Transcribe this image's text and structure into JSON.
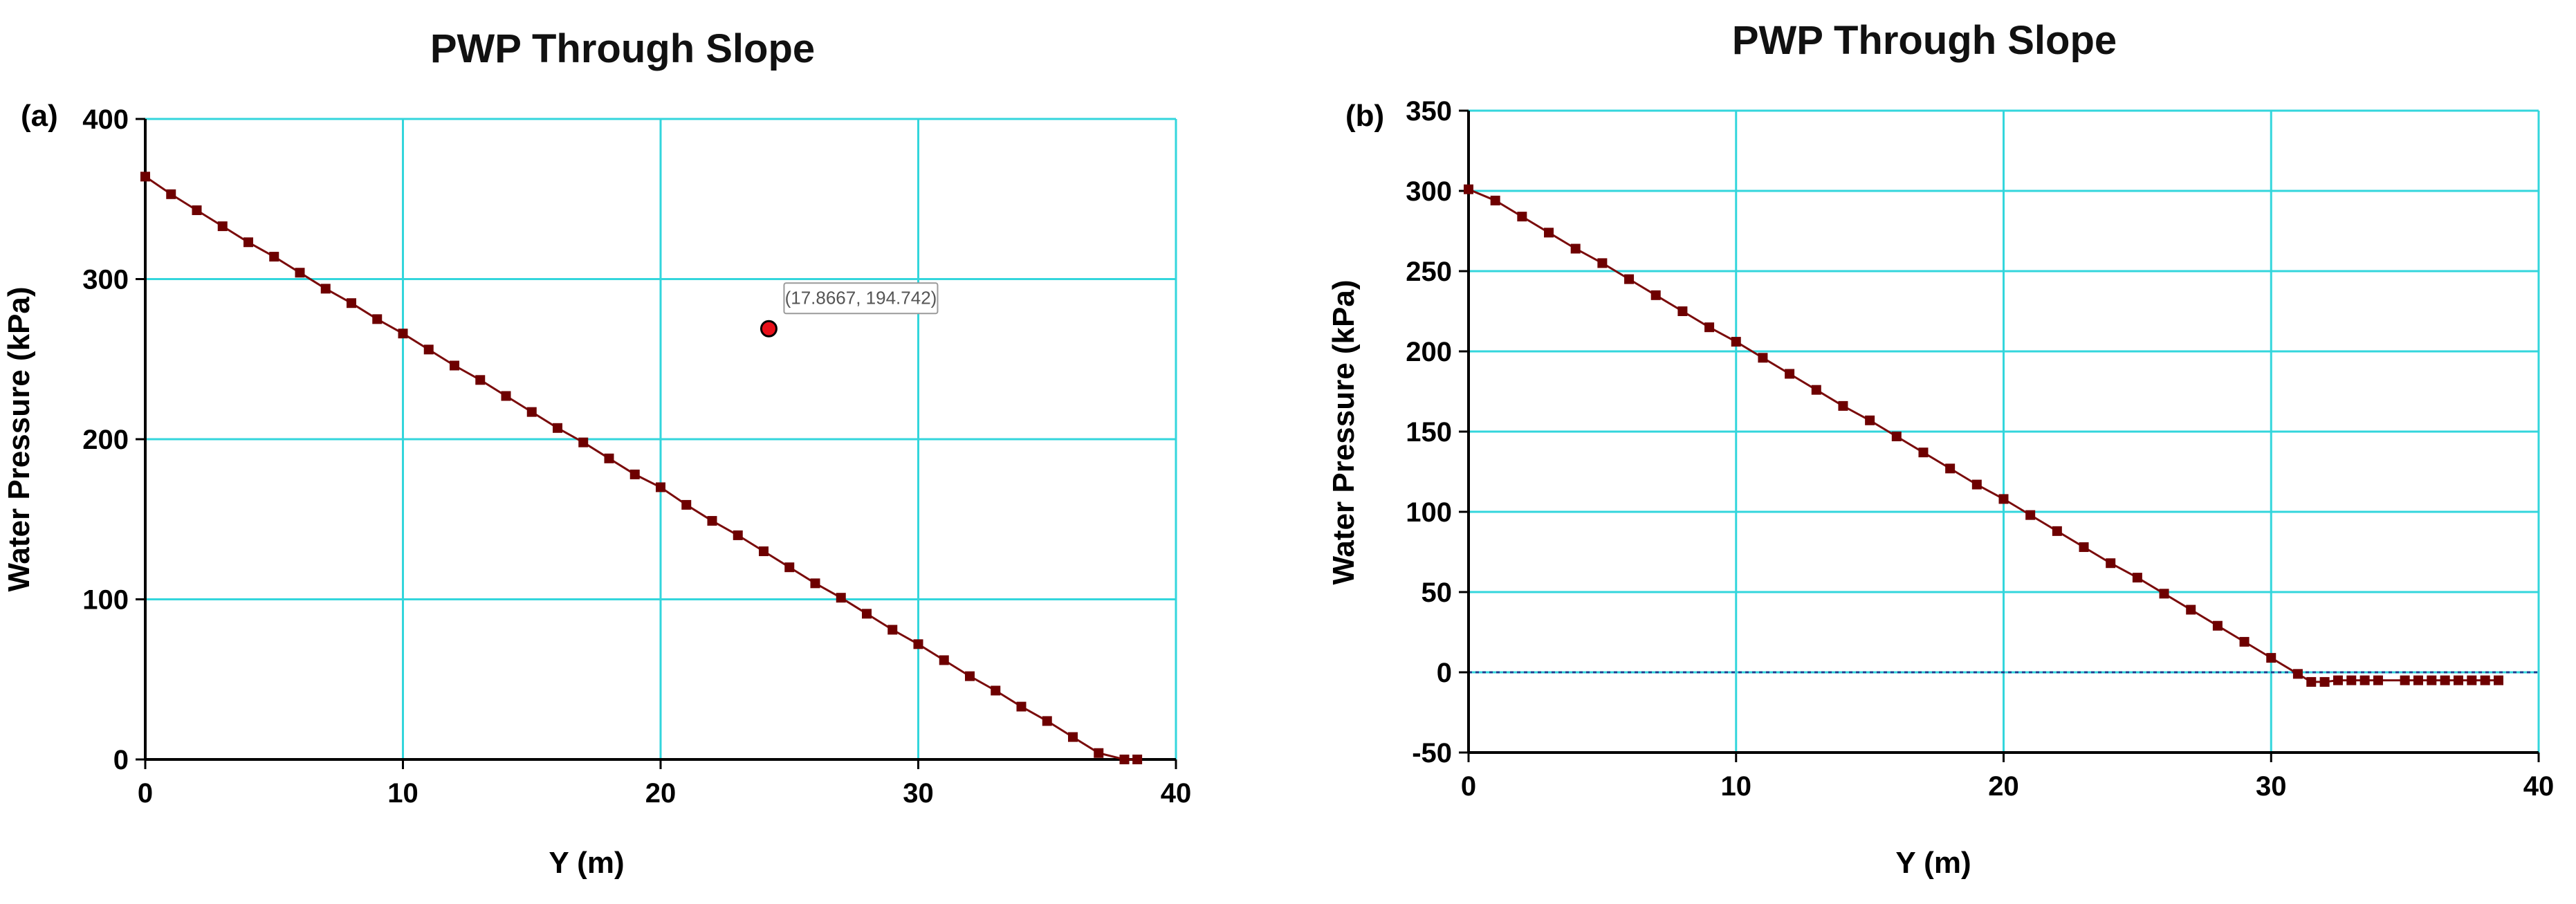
{
  "colors": {
    "grid": "#33d6dc",
    "frame": "#000000",
    "series": "#7a0a0a",
    "marker": "#6e0000",
    "zero_line": "#1a3f8f",
    "highlight": "#e8101a"
  },
  "chart_data": [
    {
      "panel_label": "(a)",
      "type": "line",
      "title": "PWP Through Slope",
      "xlabel": "Y (m)",
      "ylabel": "Water Pressure (kPa)",
      "xlim": [
        0,
        40
      ],
      "ylim": [
        0,
        400
      ],
      "xticks": [
        "0",
        "10",
        "20",
        "30",
        "40"
      ],
      "yticks": [
        "0",
        "100",
        "200",
        "300",
        "400"
      ],
      "grid": true,
      "zero_line": false,
      "series": [
        {
          "marker": "square",
          "x": [
            0,
            1,
            2,
            3,
            4,
            5,
            6,
            7,
            8,
            9,
            10,
            11,
            12,
            13,
            14,
            15,
            16,
            17,
            18,
            19,
            20,
            21,
            22,
            23,
            24,
            25,
            26,
            27,
            28,
            29,
            30,
            31,
            32,
            33,
            34,
            35,
            36,
            37,
            38,
            38.5
          ],
          "y": [
            364,
            353,
            343,
            333,
            323,
            314,
            304,
            294,
            285,
            275,
            266,
            256,
            246,
            237,
            227,
            217,
            207,
            198,
            188,
            178,
            170,
            159,
            149,
            140,
            130,
            120,
            110,
            101,
            91,
            81,
            72,
            62,
            52,
            43,
            33,
            24,
            14,
            4,
            0,
            0
          ]
        }
      ],
      "annotation": {
        "text": "(17.8667, 194.742)",
        "x": 24.2,
        "y": 269
      }
    },
    {
      "panel_label": "(b)",
      "type": "line",
      "title": "PWP Through Slope",
      "xlabel": "Y (m)",
      "ylabel": "Water Pressure (kPa)",
      "xlim": [
        0,
        40
      ],
      "ylim": [
        -50,
        350
      ],
      "xticks": [
        "0",
        "10",
        "20",
        "30",
        "40"
      ],
      "yticks": [
        "-50",
        "0",
        "50",
        "100",
        "150",
        "200",
        "250",
        "300",
        "350"
      ],
      "grid": true,
      "zero_line": true,
      "series": [
        {
          "marker": "square",
          "x": [
            0,
            1,
            2,
            3,
            4,
            5,
            6,
            7,
            8,
            9,
            10,
            11,
            12,
            13,
            14,
            15,
            16,
            17,
            18,
            19,
            20,
            21,
            22,
            23,
            24,
            25,
            26,
            27,
            28,
            29,
            30,
            31,
            31.5,
            32,
            32.5,
            33,
            33.5,
            34,
            35,
            35.5,
            36,
            36.5,
            37,
            37.5,
            38,
            38.5
          ],
          "y": [
            301,
            294,
            284,
            274,
            264,
            255,
            245,
            235,
            225,
            215,
            206,
            196,
            186,
            176,
            166,
            157,
            147,
            137,
            127,
            117,
            108,
            98,
            88,
            78,
            68,
            59,
            49,
            39,
            29,
            19,
            9,
            -1,
            -6,
            -6,
            -5,
            -5,
            -5,
            -5,
            -5,
            -5,
            -5,
            -5,
            -5,
            -5,
            -5,
            -5
          ]
        }
      ]
    }
  ]
}
